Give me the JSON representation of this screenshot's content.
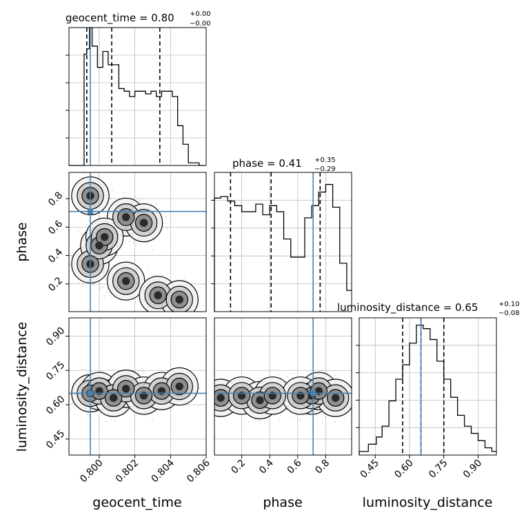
{
  "chart_data": {
    "type": "corner",
    "parameters": [
      "geocent_time",
      "phase",
      "luminosity_distance"
    ],
    "truths": {
      "geocent_time": 0.7995,
      "phase": 0.71,
      "luminosity_distance": 0.65
    },
    "truth_color": "#4682b4",
    "titles": [
      {
        "param": "geocent_time",
        "text": "geocent_time = 0.80",
        "plus": "+0.00",
        "minus": "−0.00"
      },
      {
        "param": "phase",
        "text": "phase = 0.41",
        "plus": "+0.35",
        "minus": "−0.29"
      },
      {
        "param": "luminosity_distance",
        "text": "luminosity_distance = 0.65",
        "plus": "+0.10",
        "minus": "−0.08"
      }
    ],
    "axis_labels": {
      "x": [
        "geocent_time",
        "phase",
        "luminosity_distance"
      ],
      "y": [
        "phase",
        "luminosity_distance"
      ]
    },
    "ranges": {
      "geocent_time": [
        0.7983,
        0.806
      ],
      "phase": [
        0.005,
        0.985
      ],
      "luminosity_distance": [
        0.38,
        0.98
      ]
    },
    "ticks": {
      "geocent_time": [
        "0.800",
        "0.802",
        "0.804",
        "0.806"
      ],
      "phase": [
        "0.2",
        "0.4",
        "0.6",
        "0.8"
      ],
      "luminosity_distance": [
        "0.45",
        "0.60",
        "0.75",
        "0.90"
      ]
    },
    "quantiles": {
      "geocent_time": [
        0.7993,
        0.8007,
        0.8034
      ],
      "phase": [
        0.12,
        0.41,
        0.76
      ],
      "luminosity_distance": [
        0.57,
        0.65,
        0.75
      ]
    },
    "histograms": {
      "geocent_time": {
        "edges": [
          0.7983,
          0.79915,
          0.7993,
          0.79945,
          0.7996,
          0.7999,
          0.8002,
          0.8005,
          0.8008,
          0.8011,
          0.8014,
          0.8017,
          0.802,
          0.8023,
          0.8026,
          0.8029,
          0.8032,
          0.8035,
          0.8038,
          0.8041,
          0.8044,
          0.8047,
          0.805,
          0.8053,
          0.8056,
          0.8059
        ],
        "counts": [
          0,
          42,
          44,
          52,
          45,
          37,
          43,
          38,
          38,
          29,
          28,
          26,
          28,
          28,
          27,
          28,
          26,
          28,
          28,
          26,
          15,
          8,
          1,
          1,
          0
        ]
      },
      "phase": {
        "edges": [
          0.005,
          0.05,
          0.1,
          0.15,
          0.2,
          0.25,
          0.3,
          0.35,
          0.4,
          0.45,
          0.5,
          0.55,
          0.6,
          0.65,
          0.7,
          0.75,
          0.8,
          0.85,
          0.9,
          0.95,
          0.985
        ],
        "counts": [
          75,
          76,
          73,
          70,
          66,
          66,
          71,
          64,
          70,
          66,
          48,
          36,
          36,
          62,
          70,
          79,
          84,
          69,
          32,
          14
        ]
      },
      "luminosity_distance": {
        "edges": [
          0.38,
          0.42,
          0.455,
          0.48,
          0.51,
          0.54,
          0.57,
          0.6,
          0.63,
          0.66,
          0.69,
          0.72,
          0.75,
          0.78,
          0.81,
          0.84,
          0.87,
          0.9,
          0.93,
          0.96,
          0.98
        ],
        "counts": [
          1,
          3,
          5,
          8,
          15,
          21,
          25,
          31,
          36,
          35,
          32,
          26,
          21,
          16,
          11,
          8,
          6,
          4,
          2,
          1
        ]
      }
    },
    "hist_max": {
      "geocent_time": 52,
      "phase": 92,
      "luminosity_distance": 38
    },
    "pairs": [
      {
        "x": "geocent_time",
        "y": "phase",
        "modes": [
          [
            0.7995,
            0.34
          ],
          [
            0.7995,
            0.82
          ],
          [
            0.8015,
            0.67
          ],
          [
            0.8025,
            0.63
          ],
          [
            0.8015,
            0.22
          ],
          [
            0.8033,
            0.12
          ],
          [
            0.8045,
            0.09
          ],
          [
            0.8,
            0.47
          ],
          [
            0.8003,
            0.53
          ]
        ]
      },
      {
        "x": "geocent_time",
        "y": "luminosity_distance",
        "modes": [
          [
            0.7995,
            0.65
          ],
          [
            0.8,
            0.66
          ],
          [
            0.8008,
            0.63
          ],
          [
            0.8015,
            0.67
          ],
          [
            0.8025,
            0.64
          ],
          [
            0.8035,
            0.66
          ],
          [
            0.8045,
            0.68
          ]
        ]
      },
      {
        "x": "phase",
        "y": "luminosity_distance",
        "modes": [
          [
            0.05,
            0.63
          ],
          [
            0.2,
            0.64
          ],
          [
            0.33,
            0.62
          ],
          [
            0.42,
            0.64
          ],
          [
            0.7,
            0.64
          ],
          [
            0.75,
            0.66
          ],
          [
            0.62,
            0.64
          ],
          [
            0.87,
            0.63
          ]
        ]
      }
    ]
  }
}
